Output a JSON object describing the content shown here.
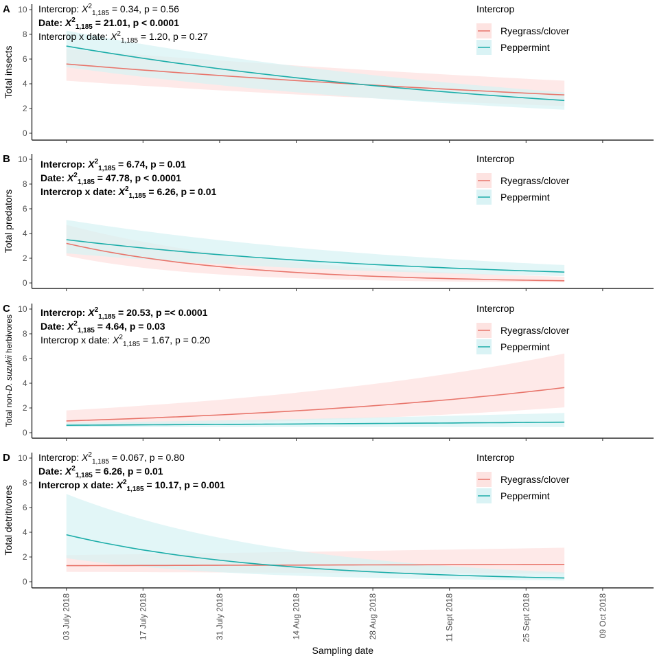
{
  "chart_data": [
    {
      "type": "line",
      "panel_label": "A",
      "ylabel": "Total insects",
      "ylim": [
        0,
        10
      ],
      "yticks": [
        0,
        2,
        4,
        6,
        8,
        10
      ],
      "x_day": [
        0,
        91
      ],
      "legend_title": "Intercrop",
      "stats": [
        {
          "bold": false,
          "pre": "Intercrop: ",
          "sub": "1,185",
          "post": " = 0.34, p = 0.56"
        },
        {
          "bold": true,
          "pre": "Date: ",
          "sub": "1,185",
          "post": " = 21.01, p < 0.0001"
        },
        {
          "bold": false,
          "pre": "Intercrop x date: ",
          "sub": "1,185",
          "post": " = 1.20, p = 0.27"
        }
      ],
      "series": [
        {
          "name": "Ryegrass/clover",
          "color": "#E8756B",
          "fill": "#FDE0DE",
          "start": 5.6,
          "end": 3.1,
          "lo_start": 4.25,
          "lo_end": 2.2,
          "hi_start": 6.8,
          "hi_end": 4.25
        },
        {
          "name": "Peppermint",
          "color": "#1CADA9",
          "fill": "#D6F2F4",
          "start": 7.05,
          "end": 2.65,
          "lo_start": 5.35,
          "lo_end": 1.9,
          "hi_start": 8.3,
          "hi_end": 3.3
        }
      ]
    },
    {
      "type": "line",
      "panel_label": "B",
      "ylabel": "Total predators",
      "ylim": [
        0,
        10
      ],
      "yticks": [
        0,
        2,
        4,
        6,
        8,
        10
      ],
      "x_day": [
        0,
        91
      ],
      "legend_title": "Intercrop",
      "stats": [
        {
          "bold": true,
          "pre": "Intercrop: ",
          "sub": "1,185",
          "post": " = 6.74, p = 0.01"
        },
        {
          "bold": true,
          "pre": "Date: ",
          "sub": "1,185",
          "post": " = 47.78, p < 0.0001"
        },
        {
          "bold": true,
          "pre": "Intercrop x date: ",
          "sub": "1,185",
          "post": " = 6.26, p = 0.01"
        }
      ],
      "series": [
        {
          "name": "Ryegrass/clover",
          "color": "#E8756B",
          "fill": "#FDE0DE",
          "start": 3.2,
          "end": 0.18,
          "lo_start": 2.2,
          "lo_end": 0.05,
          "hi_start": 4.7,
          "hi_end": 0.5
        },
        {
          "name": "Peppermint",
          "color": "#1CADA9",
          "fill": "#D6F2F4",
          "start": 3.5,
          "end": 0.88,
          "lo_start": 2.4,
          "lo_end": 0.55,
          "hi_start": 5.1,
          "hi_end": 1.45
        }
      ]
    },
    {
      "type": "line",
      "panel_label": "C",
      "ylabel": "Total non-D. suzukii herbivores",
      "ylabel_parts": [
        "Total non-",
        "D. suzukii",
        " herbivores"
      ],
      "ylim": [
        0,
        10
      ],
      "yticks": [
        0,
        2,
        4,
        6,
        8,
        10
      ],
      "x_day": [
        0,
        91
      ],
      "legend_title": "Intercrop",
      "stats": [
        {
          "bold": true,
          "pre": "Intercrop: ",
          "sub": "1,185",
          "post": " = 20.53, p =< 0.0001"
        },
        {
          "bold": true,
          "pre": "Date: ",
          "sub": "1,185",
          "post": " = 4.64, p = 0.03"
        },
        {
          "bold": false,
          "pre": "Intercrop x date: ",
          "sub": "1,185",
          "post": " = 1.67, p = 0.20"
        }
      ],
      "series": [
        {
          "name": "Ryegrass/clover",
          "color": "#E8756B",
          "fill": "#FDE0DE",
          "start": 0.95,
          "end": 3.65,
          "lo_start": 0.5,
          "lo_end": 2.05,
          "hi_start": 1.8,
          "hi_end": 6.4
        },
        {
          "name": "Peppermint",
          "color": "#1CADA9",
          "fill": "#D6F2F4",
          "start": 0.6,
          "end": 0.85,
          "lo_start": 0.45,
          "lo_end": 0.45,
          "hi_start": 0.8,
          "hi_end": 1.6
        }
      ]
    },
    {
      "type": "line",
      "panel_label": "D",
      "ylabel": "Total detritivores",
      "ylim": [
        0,
        10
      ],
      "yticks": [
        0,
        2,
        4,
        6,
        8,
        10
      ],
      "x_day": [
        0,
        91
      ],
      "legend_title": "Intercrop",
      "stats": [
        {
          "bold": false,
          "pre": "Intercrop: ",
          "sub": "1,185",
          "post": " = 0.067, p = 0.80"
        },
        {
          "bold": true,
          "pre": "Date: ",
          "sub": "1,185",
          "post": " = 6.26, p = 0.01"
        },
        {
          "bold": true,
          "pre": "Intercrop x date: ",
          "sub": "1,185",
          "post": " = 10.17, p = 0.001"
        }
      ],
      "series": [
        {
          "name": "Ryegrass/clover",
          "color": "#E8756B",
          "fill": "#FDE0DE",
          "start": 1.3,
          "end": 1.4,
          "lo_start": 0.8,
          "lo_end": 0.65,
          "hi_start": 2.15,
          "hi_end": 2.75
        },
        {
          "name": "Peppermint",
          "color": "#1CADA9",
          "fill": "#D6F2F4",
          "start": 3.8,
          "end": 0.3,
          "lo_start": 1.9,
          "lo_end": 0.1,
          "hi_start": 7.1,
          "hi_end": 0.75
        }
      ]
    }
  ],
  "x_axis": {
    "label": "Sampling date",
    "ticks": [
      {
        "label": "03 July 2018",
        "day": 0
      },
      {
        "label": "17 July 2018",
        "day": 14
      },
      {
        "label": "31 July 2018",
        "day": 28
      },
      {
        "label": "14 Aug 2018",
        "day": 42
      },
      {
        "label": "28 Aug 2018",
        "day": 56
      },
      {
        "label": "11 Sept 2018",
        "day": 70
      },
      {
        "label": "25 Sept 2018",
        "day": 84
      },
      {
        "label": "09 Oct 2018",
        "day": 98
      }
    ],
    "xlim": [
      -6.3,
      107.3
    ]
  }
}
